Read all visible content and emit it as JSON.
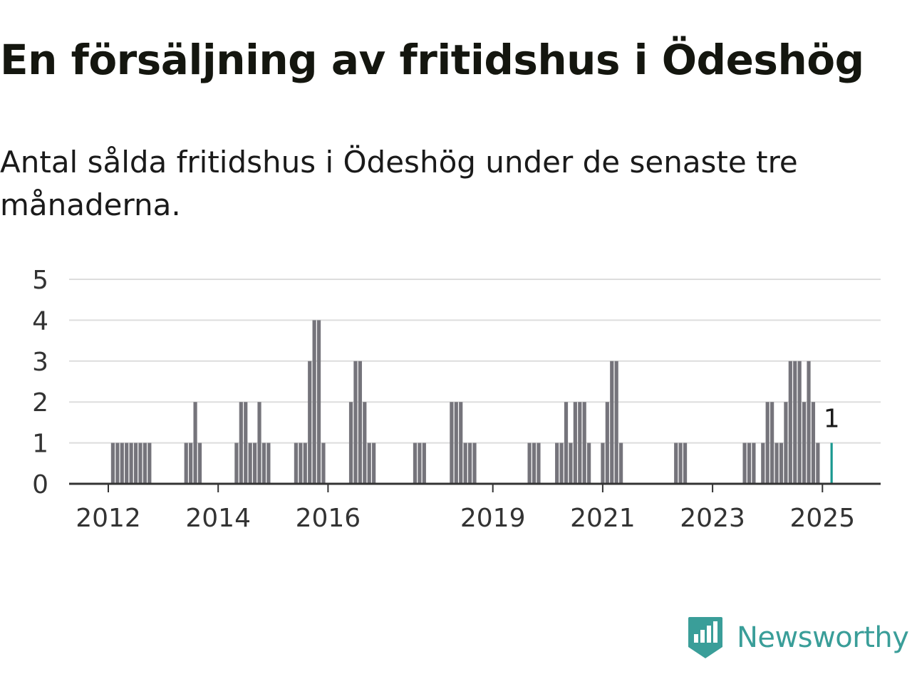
{
  "title": "En försäljning av fritidshus i Ödeshög",
  "subtitle": "Antal sålda fritidshus i Ödeshög under de senaste tre månaderna.",
  "brand": {
    "name": "Newsworthy",
    "color": "#3a9e99"
  },
  "colors": {
    "bar": "#75747b",
    "highlight": "#1a9990",
    "grid": "#dddddd",
    "axis": "#333333"
  },
  "chart_data": {
    "type": "bar",
    "ylim": [
      0,
      5
    ],
    "yticks": [
      0,
      1,
      2,
      3,
      4,
      5
    ],
    "xticks": [
      "2012",
      "2014",
      "2016",
      "2019",
      "2021",
      "2023",
      "2025"
    ],
    "grid": true,
    "series": [
      {
        "values": [
          [
            "2012-02",
            1
          ],
          [
            "2012-03",
            1
          ],
          [
            "2012-04",
            1
          ],
          [
            "2012-05",
            1
          ],
          [
            "2012-06",
            1
          ],
          [
            "2012-07",
            1
          ],
          [
            "2012-08",
            1
          ],
          [
            "2012-09",
            1
          ],
          [
            "2012-10",
            1
          ],
          [
            "2013-06",
            1
          ],
          [
            "2013-07",
            1
          ],
          [
            "2013-08",
            2
          ],
          [
            "2013-09",
            1
          ],
          [
            "2014-05",
            1
          ],
          [
            "2014-06",
            2
          ],
          [
            "2014-07",
            2
          ],
          [
            "2014-08",
            1
          ],
          [
            "2014-09",
            1
          ],
          [
            "2014-10",
            2
          ],
          [
            "2014-11",
            1
          ],
          [
            "2014-12",
            1
          ],
          [
            "2015-06",
            1
          ],
          [
            "2015-07",
            1
          ],
          [
            "2015-08",
            1
          ],
          [
            "2015-09",
            3
          ],
          [
            "2015-10",
            4
          ],
          [
            "2015-11",
            4
          ],
          [
            "2015-12",
            1
          ],
          [
            "2016-06",
            2
          ],
          [
            "2016-07",
            3
          ],
          [
            "2016-08",
            3
          ],
          [
            "2016-09",
            2
          ],
          [
            "2016-10",
            1
          ],
          [
            "2016-11",
            1
          ],
          [
            "2017-08",
            1
          ],
          [
            "2017-09",
            1
          ],
          [
            "2017-10",
            1
          ],
          [
            "2018-04",
            2
          ],
          [
            "2018-05",
            2
          ],
          [
            "2018-06",
            2
          ],
          [
            "2018-07",
            1
          ],
          [
            "2018-08",
            1
          ],
          [
            "2018-09",
            1
          ],
          [
            "2019-09",
            1
          ],
          [
            "2019-10",
            1
          ],
          [
            "2019-11",
            1
          ],
          [
            "2020-03",
            1
          ],
          [
            "2020-04",
            1
          ],
          [
            "2020-05",
            2
          ],
          [
            "2020-06",
            1
          ],
          [
            "2020-07",
            2
          ],
          [
            "2020-08",
            2
          ],
          [
            "2020-09",
            2
          ],
          [
            "2020-10",
            1
          ],
          [
            "2021-01",
            1
          ],
          [
            "2021-02",
            2
          ],
          [
            "2021-03",
            3
          ],
          [
            "2021-04",
            3
          ],
          [
            "2021-05",
            1
          ],
          [
            "2022-05",
            1
          ],
          [
            "2022-06",
            1
          ],
          [
            "2022-07",
            1
          ],
          [
            "2023-08",
            1
          ],
          [
            "2023-09",
            1
          ],
          [
            "2023-10",
            1
          ],
          [
            "2023-12",
            1
          ],
          [
            "2024-01",
            2
          ],
          [
            "2024-02",
            2
          ],
          [
            "2024-03",
            1
          ],
          [
            "2024-04",
            1
          ],
          [
            "2024-05",
            2
          ],
          [
            "2024-06",
            3
          ],
          [
            "2024-07",
            3
          ],
          [
            "2024-08",
            3
          ],
          [
            "2024-09",
            2
          ],
          [
            "2024-10",
            3
          ],
          [
            "2024-11",
            2
          ],
          [
            "2024-12",
            1
          ]
        ]
      }
    ],
    "highlight": {
      "x": "2025-03",
      "value": 1,
      "label": "1"
    }
  }
}
